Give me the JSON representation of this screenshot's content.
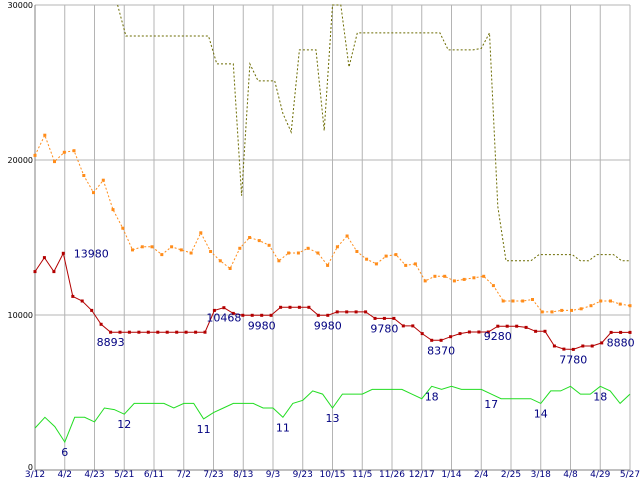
{
  "chart_data": {
    "type": "line",
    "ylim": [
      0,
      30000
    ],
    "yticks": [
      {
        "value": 0,
        "label": "0"
      },
      {
        "value": 10000,
        "label": "10000"
      },
      {
        "value": 20000,
        "label": "20000"
      },
      {
        "value": 30000,
        "label": "30000"
      }
    ],
    "x_labels": [
      "3/12",
      "4/2",
      "4/23",
      "5/21",
      "6/11",
      "7/2",
      "7/23",
      "8/13",
      "9/3",
      "9/23",
      "10/15",
      "11/5",
      "11/26",
      "12/17",
      "1/14",
      "2/4",
      "2/25",
      "3/18",
      "4/8",
      "4/29",
      "5/27"
    ],
    "grid": true,
    "legend": "none",
    "series": [
      {
        "color": "#6b6b00",
        "style": "dotted",
        "values": [
          null,
          null,
          null,
          null,
          null,
          null,
          null,
          null,
          null,
          null,
          30000,
          28000,
          28000,
          28000,
          28000,
          28000,
          28000,
          28000,
          28000,
          28000,
          28000,
          28000,
          26200,
          26200,
          26200,
          17700,
          26200,
          25100,
          25100,
          25100,
          23000,
          21800,
          27100,
          27100,
          27100,
          21900,
          30000,
          30000,
          26000,
          28200,
          28200,
          28200,
          28200,
          28200,
          28200,
          28200,
          28200,
          28200,
          28200,
          28200,
          27100,
          27100,
          27100,
          27100,
          27200,
          28200,
          17000,
          13500,
          13500,
          13500,
          13500,
          13900,
          13900,
          13900,
          13900,
          13900,
          13500,
          13500,
          13900,
          13900,
          13900,
          13500,
          13500
        ]
      },
      {
        "color": "#ff8c1a",
        "style": "dotted-markers",
        "values": [
          20300,
          21600,
          19900,
          20500,
          20600,
          19000,
          17900,
          18700,
          16800,
          15600,
          14200,
          14400,
          14400,
          13900,
          14400,
          14200,
          14000,
          15300,
          14100,
          13500,
          13000,
          14300,
          15000,
          14800,
          14500,
          13500,
          14000,
          14000,
          14300,
          14000,
          13200,
          14400,
          15100,
          14100,
          13600,
          13300,
          13800,
          13900,
          13200,
          13300,
          12200,
          12500,
          12500,
          12200,
          12300,
          12400,
          12500,
          11900,
          10900,
          10900,
          10900,
          11000,
          10200,
          10200,
          10300,
          10300,
          10400,
          10600,
          10900,
          10900,
          10700,
          10600
        ]
      },
      {
        "color": "#b30000",
        "style": "solid-markers",
        "values": [
          12800,
          13700,
          12800,
          13980,
          11200,
          10900,
          10300,
          9400,
          8893,
          8893,
          8893,
          8893,
          8893,
          8893,
          8893,
          8893,
          8893,
          8893,
          8893,
          10300,
          10468,
          10100,
          9980,
          9980,
          9980,
          9980,
          10500,
          10500,
          10500,
          10500,
          9980,
          9980,
          10200,
          10200,
          10200,
          10200,
          9780,
          9780,
          9780,
          9300,
          9300,
          8800,
          8370,
          8370,
          8600,
          8800,
          8900,
          8900,
          8900,
          9280,
          9280,
          9280,
          9200,
          8950,
          8950,
          8000,
          7800,
          7780,
          8000,
          8000,
          8200,
          8880,
          8880,
          8880
        ]
      },
      {
        "color": "#22dd22",
        "style": "solid",
        "values": [
          2700,
          3400,
          2800,
          1800,
          3400,
          3400,
          3100,
          4000,
          3900,
          3600,
          4300,
          4300,
          4300,
          4300,
          4000,
          4300,
          4300,
          3300,
          3700,
          4000,
          4300,
          4300,
          4300,
          4000,
          4000,
          3400,
          4300,
          4500,
          5100,
          4900,
          4000,
          4900,
          4900,
          4900,
          5200,
          5200,
          5200,
          5200,
          4900,
          4600,
          5400,
          5200,
          5400,
          5200,
          5200,
          5200,
          4900,
          4600,
          4600,
          4600,
          4600,
          4300,
          5100,
          5100,
          5400,
          4900,
          4900,
          5400,
          5100,
          4300,
          4900
        ]
      }
    ],
    "annotations": [
      {
        "series": 2,
        "index": 3,
        "text": "13980",
        "pos": "left"
      },
      {
        "series": 2,
        "index": 8,
        "text": "8893",
        "pos": "below"
      },
      {
        "series": 2,
        "index": 20,
        "text": "10468",
        "pos": "below"
      },
      {
        "series": 2,
        "index": 24,
        "text": "9980",
        "pos": "below"
      },
      {
        "series": 2,
        "index": 31,
        "text": "9980",
        "pos": "below"
      },
      {
        "series": 2,
        "index": 37,
        "text": "9780",
        "pos": "below"
      },
      {
        "series": 2,
        "index": 43,
        "text": "8370",
        "pos": "below"
      },
      {
        "series": 2,
        "index": 49,
        "text": "9280",
        "pos": "below"
      },
      {
        "series": 2,
        "index": 57,
        "text": "7780",
        "pos": "below"
      },
      {
        "series": 2,
        "index": 62,
        "text": "8880",
        "pos": "below"
      },
      {
        "series": 3,
        "index": 3,
        "text": "6",
        "pos": "below"
      },
      {
        "series": 3,
        "index": 9,
        "text": "12",
        "pos": "below"
      },
      {
        "series": 3,
        "index": 17,
        "text": "11",
        "pos": "below"
      },
      {
        "series": 3,
        "index": 25,
        "text": "11",
        "pos": "below"
      },
      {
        "series": 3,
        "index": 30,
        "text": "13",
        "pos": "below"
      },
      {
        "series": 3,
        "index": 40,
        "text": "18",
        "pos": "below"
      },
      {
        "series": 3,
        "index": 46,
        "text": "17",
        "pos": "below"
      },
      {
        "series": 3,
        "index": 51,
        "text": "14",
        "pos": "below"
      },
      {
        "series": 3,
        "index": 57,
        "text": "18",
        "pos": "below"
      }
    ]
  }
}
